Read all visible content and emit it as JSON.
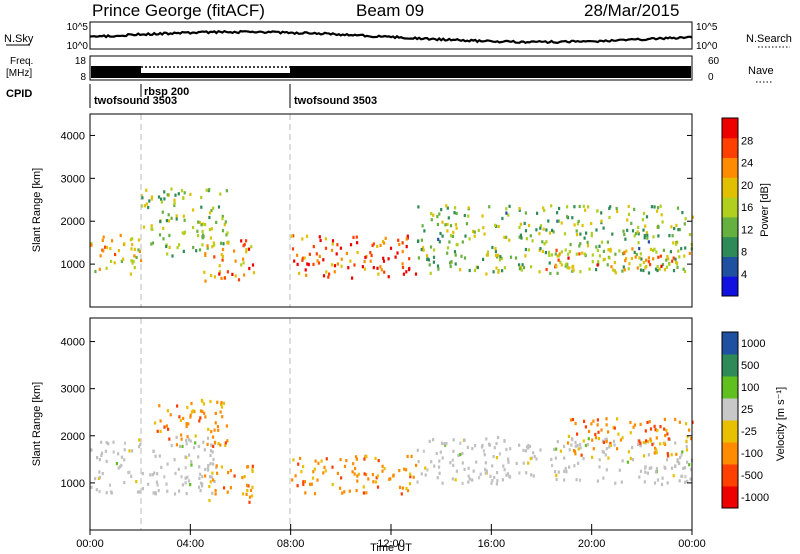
{
  "header": {
    "station": "Prince George (fitACF)",
    "beam": "Beam 09",
    "date": "28/Mar/2015"
  },
  "strips": {
    "nsky_label": "N.Sky",
    "nsky_ticks": [
      "10^5",
      "10^0"
    ],
    "nsearch_label": "N.Search",
    "freq_label_1": "Freq.",
    "freq_label_2": "[MHz]",
    "freq_ticks": [
      "18",
      "8"
    ],
    "nave_ticks": [
      "60",
      "0"
    ],
    "nave_label": "Nave",
    "cpid_label": "CPID",
    "cpid_segments": [
      "twofsound 3503",
      "rbsp 200",
      "twofsound 3503"
    ]
  },
  "colors": {
    "power": [
      "#1010e0",
      "#2050a0",
      "#2e8b57",
      "#66b040",
      "#b0d020",
      "#e0c000",
      "#ff8c00",
      "#ff4000",
      "#ee0000"
    ],
    "velocity": [
      "#ee0000",
      "#ff4000",
      "#ff8c00",
      "#e8c000",
      "#c8c8c8",
      "#60c020",
      "#2e8b57",
      "#2050a0"
    ],
    "ground_scatter": "#c0c0c0"
  },
  "chart_data": [
    {
      "type": "heatmap",
      "name": "power",
      "xlabel": "",
      "ylabel": "Slant Range [km]",
      "xlim": [
        0,
        24
      ],
      "ylim": [
        0,
        4500
      ],
      "yticks": [
        1000,
        2000,
        3000,
        4000
      ],
      "colorbar": {
        "label": "Power [dB]",
        "range": [
          0,
          32
        ],
        "ticks": [
          4,
          8,
          12,
          16,
          20,
          24,
          28
        ]
      },
      "echo_regions": [
        {
          "t0": 0.0,
          "t1": 2.0,
          "r0": 800,
          "r1": 1800,
          "value": 20
        },
        {
          "t0": 2.0,
          "t1": 5.5,
          "r0": 1200,
          "r1": 2800,
          "value": 14
        },
        {
          "t0": 4.5,
          "t1": 6.5,
          "r0": 600,
          "r1": 1600,
          "value": 24
        },
        {
          "t0": 8.0,
          "t1": 13.0,
          "r0": 700,
          "r1": 1700,
          "value": 26
        },
        {
          "t0": 13.0,
          "t1": 24.0,
          "r0": 800,
          "r1": 2400,
          "value": 14
        },
        {
          "t0": 18.0,
          "t1": 24.0,
          "r0": 900,
          "r1": 1400,
          "value": 22
        }
      ]
    },
    {
      "type": "heatmap",
      "name": "velocity",
      "xlabel": "Time UT",
      "ylabel": "Slant Range [km]",
      "xlim": [
        0,
        24
      ],
      "ylim": [
        0,
        4500
      ],
      "yticks": [
        1000,
        2000,
        3000,
        4000
      ],
      "xticks": [
        "00:00",
        "04:00",
        "08:00",
        "12:00",
        "16:00",
        "20:00",
        "00:00"
      ],
      "colorbar": {
        "label": "Velocity [m s⁻¹]",
        "ticks": [
          "1000",
          "500",
          "100",
          "25",
          "-25",
          "-100",
          "-500",
          "-1000"
        ]
      },
      "echo_regions": [
        {
          "t0": 0.0,
          "t1": 5.0,
          "r0": 800,
          "r1": 2000,
          "value": 0
        },
        {
          "t0": 2.5,
          "t1": 5.5,
          "r0": 1800,
          "r1": 2800,
          "value": -100
        },
        {
          "t0": 4.5,
          "t1": 6.5,
          "r0": 600,
          "r1": 1400,
          "value": -300
        },
        {
          "t0": 8.0,
          "t1": 13.0,
          "r0": 800,
          "r1": 1600,
          "value": -150
        },
        {
          "t0": 13.0,
          "t1": 24.0,
          "r0": 1000,
          "r1": 2000,
          "value": 0
        },
        {
          "t0": 19.0,
          "t1": 24.0,
          "r0": 1600,
          "r1": 2400,
          "value": -200
        }
      ]
    }
  ]
}
